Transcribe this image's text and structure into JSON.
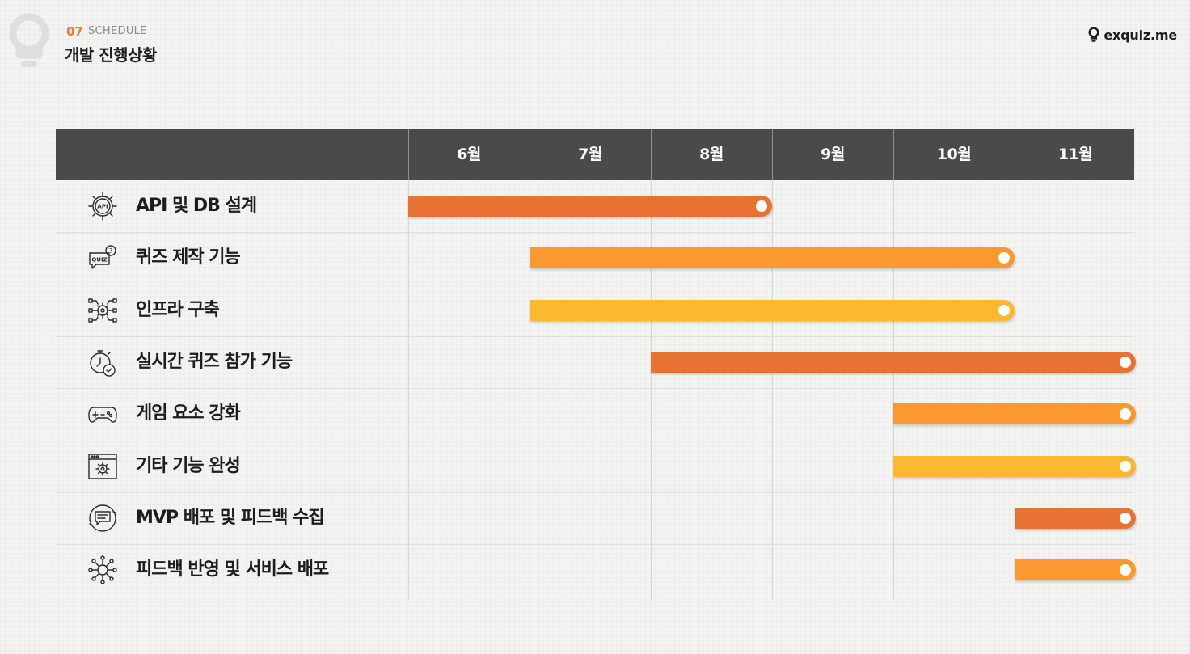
{
  "header": {
    "section_number": "07",
    "section_label": "SCHEDULE",
    "title": "개발 진행상황",
    "brand": "exquiz.me"
  },
  "icons": {
    "watermark": "lightbulb-icon",
    "brand": "lightbulb-icon"
  },
  "colors": {
    "header_bg": "#4a4a4a",
    "accent": "#f07b2c",
    "dark_orange": "#e87234",
    "orange": "#fb982f",
    "yellow": "#fdb831"
  },
  "chart_data": {
    "type": "gantt",
    "months": [
      "6월",
      "7월",
      "8월",
      "9월",
      "10월",
      "11월"
    ],
    "tasks": [
      {
        "label": "API 및 DB 설계",
        "icon": "api-gear-icon",
        "start": 0,
        "end": 3,
        "color": "#e87234"
      },
      {
        "label": "퀴즈 제작 기능",
        "icon": "quiz-icon",
        "start": 1,
        "end": 5,
        "color": "#fb982f"
      },
      {
        "label": "인프라 구축",
        "icon": "network-gear-icon",
        "start": 1,
        "end": 5,
        "color": "#fdb831"
      },
      {
        "label": "실시간 퀴즈 참가 기능",
        "icon": "stopwatch-check-icon",
        "start": 2,
        "end": 6,
        "color": "#e87234"
      },
      {
        "label": "게임 요소 강화",
        "icon": "gamepad-icon",
        "start": 4,
        "end": 6,
        "color": "#fb982f"
      },
      {
        "label": "기타 기능 완성",
        "icon": "browser-settings-icon",
        "start": 4,
        "end": 6,
        "color": "#fdb831"
      },
      {
        "label": "MVP 배포 및 피드백 수집",
        "icon": "feedback-chat-icon",
        "start": 5,
        "end": 6,
        "color": "#e87234"
      },
      {
        "label": "피드백 반영 및 서비스 배포",
        "icon": "network-hub-icon",
        "start": 5,
        "end": 6,
        "color": "#fb982f"
      }
    ]
  }
}
